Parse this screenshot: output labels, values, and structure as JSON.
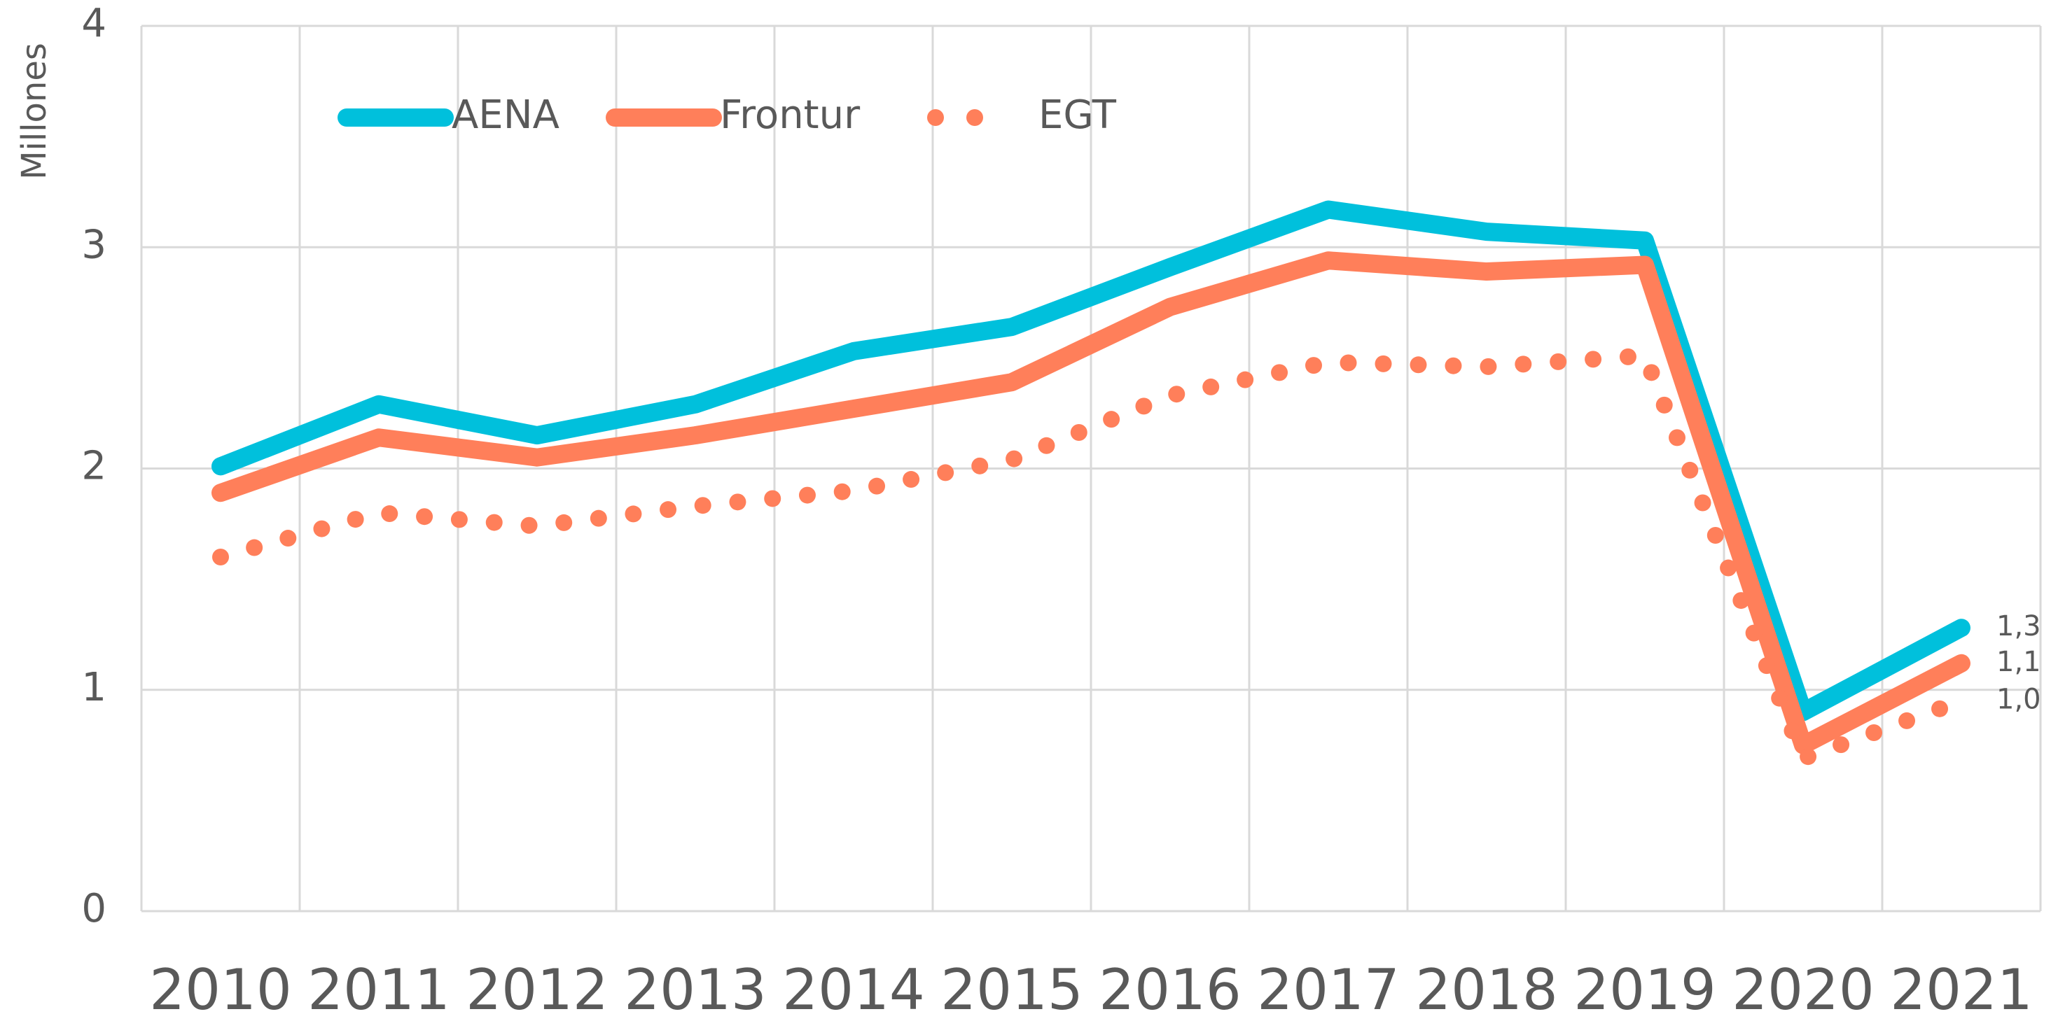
{
  "chart_data": {
    "type": "line",
    "y_label": "Millones",
    "categories": [
      "2010",
      "2011",
      "2012",
      "2013",
      "2014",
      "2015",
      "2016",
      "2017",
      "2018",
      "2019",
      "2020",
      "2021"
    ],
    "series": [
      {
        "name": "AENA",
        "color": "#00c0dc",
        "style": "solid",
        "values": [
          2.01,
          2.29,
          2.15,
          2.29,
          2.53,
          2.64,
          2.91,
          3.17,
          3.07,
          3.03,
          0.9,
          1.28
        ],
        "value_labels": [
          null,
          null,
          null,
          null,
          null,
          null,
          null,
          null,
          null,
          null,
          null,
          "1,3"
        ]
      },
      {
        "name": "Frontur",
        "color": "#ff7f5a",
        "style": "solid",
        "values": [
          1.89,
          2.14,
          2.05,
          2.15,
          2.27,
          2.39,
          2.73,
          2.94,
          2.89,
          2.92,
          0.75,
          1.12
        ],
        "value_labels": [
          null,
          null,
          null,
          null,
          null,
          null,
          null,
          null,
          null,
          null,
          null,
          "1,1"
        ]
      },
      {
        "name": "EGT",
        "color": "#ff7f5a",
        "style": "dotted",
        "values": [
          1.6,
          1.8,
          1.74,
          1.83,
          1.9,
          2.04,
          2.33,
          2.48,
          2.46,
          2.51,
          0.69,
          0.95
        ],
        "value_labels": [
          null,
          null,
          null,
          null,
          null,
          null,
          null,
          null,
          null,
          null,
          null,
          "1,0"
        ]
      }
    ],
    "ylim": [
      0,
      4
    ],
    "yticks": [
      0,
      1,
      2,
      3,
      4
    ],
    "grid": true
  }
}
